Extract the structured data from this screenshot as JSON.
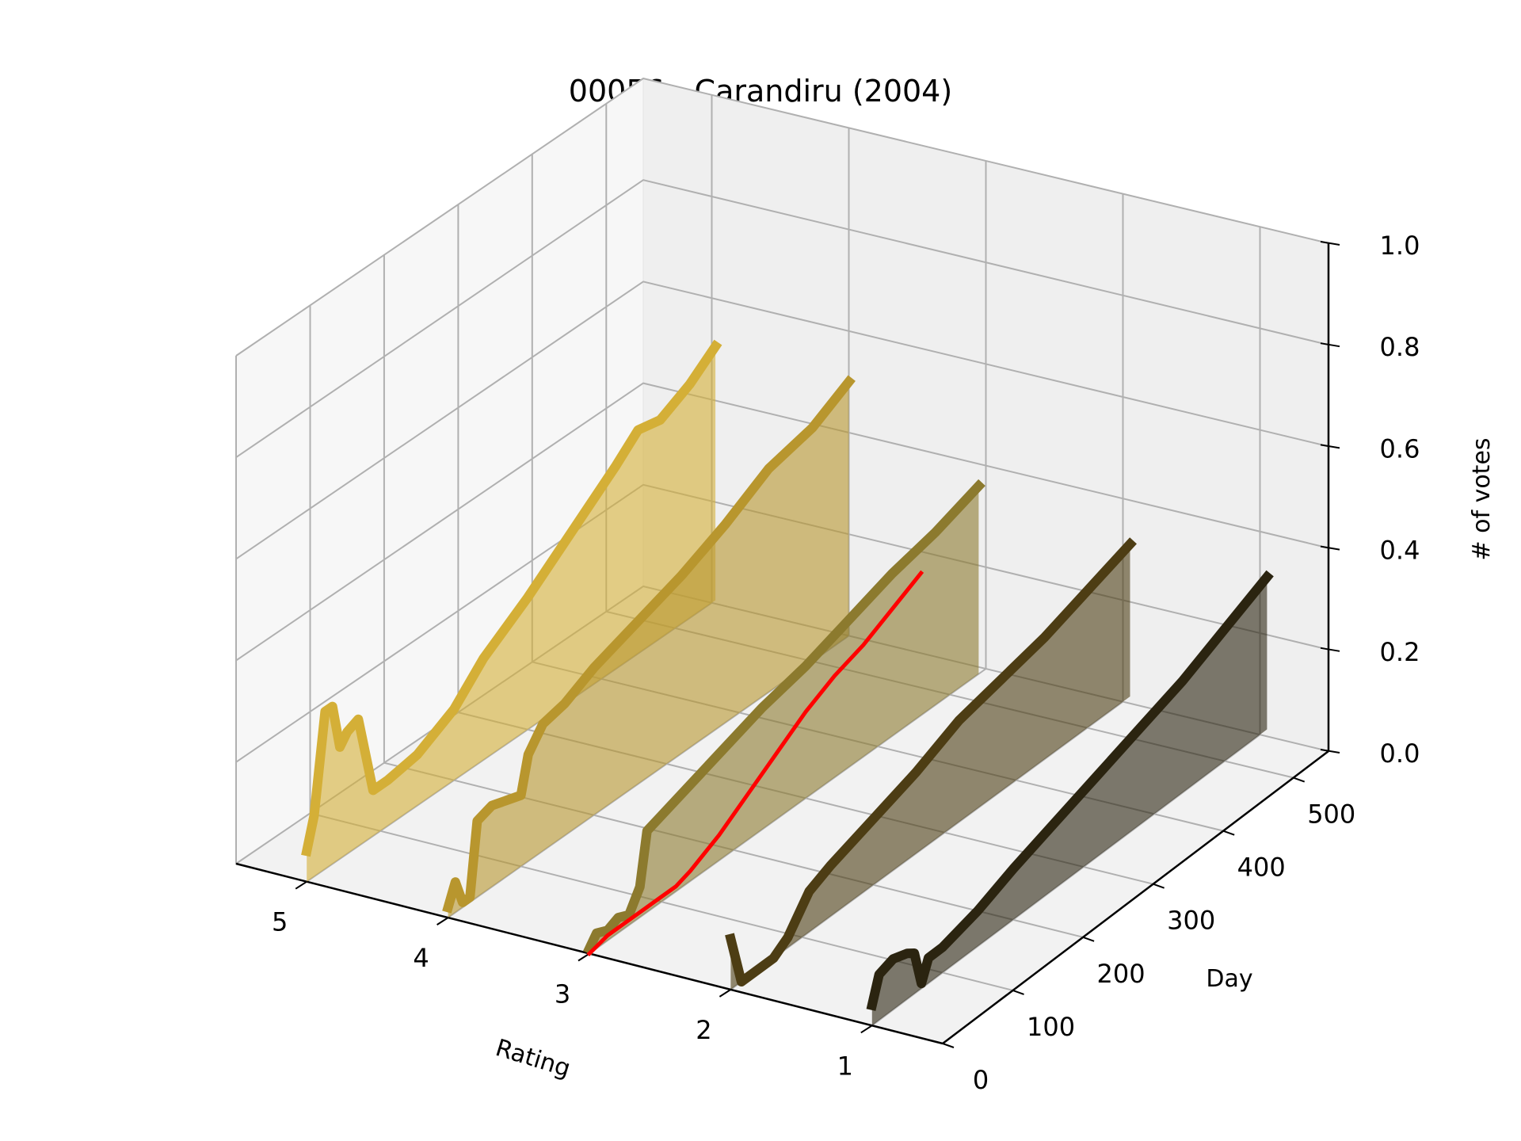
{
  "chart_data": {
    "type": "line",
    "projection": "3d",
    "title": "00056 - Carandiru (2004)",
    "xlabel": "Rating",
    "ylabel": "Day",
    "zlabel": "# of votes",
    "x_ticks": [
      "5",
      "4",
      "3",
      "2",
      "1"
    ],
    "y_ticks": [
      "0",
      "100",
      "200",
      "300",
      "400",
      "500"
    ],
    "z_ticks": [
      "0.0",
      "0.2",
      "0.4",
      "0.6",
      "0.8",
      "1.0"
    ],
    "xlim": [
      0.5,
      5.5
    ],
    "ylim": [
      0,
      550
    ],
    "zlim": [
      0,
      1
    ],
    "grid": true,
    "filled_under_lines": true,
    "series": [
      {
        "rating": 5,
        "color": "#d4af37",
        "points": [
          [
            0,
            0.06
          ],
          [
            10,
            0.12
          ],
          [
            25,
            0.31
          ],
          [
            35,
            0.31
          ],
          [
            45,
            0.22
          ],
          [
            55,
            0.24
          ],
          [
            70,
            0.25
          ],
          [
            90,
            0.09
          ],
          [
            110,
            0.09
          ],
          [
            150,
            0.1
          ],
          [
            200,
            0.14
          ],
          [
            240,
            0.2
          ],
          [
            300,
            0.26
          ],
          [
            360,
            0.33
          ],
          [
            420,
            0.4
          ],
          [
            450,
            0.44
          ],
          [
            480,
            0.43
          ],
          [
            520,
            0.46
          ],
          [
            555,
            0.5
          ]
        ]
      },
      {
        "rating": 4,
        "color": "#b8962e",
        "points": [
          [
            0,
            0.02
          ],
          [
            10,
            0.06
          ],
          [
            20,
            0.01
          ],
          [
            30,
            0.01
          ],
          [
            40,
            0.15
          ],
          [
            60,
            0.16
          ],
          [
            80,
            0.15
          ],
          [
            100,
            0.14
          ],
          [
            110,
            0.21
          ],
          [
            130,
            0.25
          ],
          [
            160,
            0.26
          ],
          [
            200,
            0.29
          ],
          [
            260,
            0.32
          ],
          [
            320,
            0.35
          ],
          [
            380,
            0.39
          ],
          [
            440,
            0.44
          ],
          [
            500,
            0.46
          ],
          [
            550,
            0.5
          ]
        ]
      },
      {
        "rating": 3,
        "color": "#8c7a2e",
        "points": [
          [
            0,
            0.01
          ],
          [
            10,
            0.03
          ],
          [
            25,
            0.02
          ],
          [
            40,
            0.03
          ],
          [
            55,
            0.02
          ],
          [
            70,
            0.06
          ],
          [
            80,
            0.16
          ],
          [
            100,
            0.17
          ],
          [
            160,
            0.2
          ],
          [
            240,
            0.24
          ],
          [
            300,
            0.26
          ],
          [
            360,
            0.29
          ],
          [
            420,
            0.32
          ],
          [
            480,
            0.34
          ],
          [
            540,
            0.37
          ]
        ]
      },
      {
        "rating": 3,
        "color": "#ff0000",
        "points": [
          [
            0,
            0.0
          ],
          [
            25,
            0.01
          ],
          [
            50,
            0.01
          ],
          [
            80,
            0.01
          ],
          [
            100,
            0.01
          ],
          [
            120,
            0.01
          ],
          [
            140,
            0.02
          ],
          [
            180,
            0.05
          ],
          [
            220,
            0.09
          ],
          [
            260,
            0.13
          ],
          [
            300,
            0.17
          ],
          [
            340,
            0.2
          ],
          [
            380,
            0.22
          ],
          [
            420,
            0.25
          ],
          [
            460,
            0.28
          ]
        ]
      },
      {
        "rating": 2,
        "color": "#4d3d14",
        "points": [
          [
            0,
            0.1
          ],
          [
            15,
            0.0
          ],
          [
            60,
            0.0
          ],
          [
            80,
            0.02
          ],
          [
            110,
            0.08
          ],
          [
            140,
            0.1
          ],
          [
            200,
            0.13
          ],
          [
            260,
            0.16
          ],
          [
            320,
            0.2
          ],
          [
            380,
            0.22
          ],
          [
            440,
            0.24
          ],
          [
            500,
            0.27
          ],
          [
            560,
            0.3
          ]
        ]
      },
      {
        "rating": 1,
        "color": "#2b2410",
        "points": [
          [
            0,
            0.04
          ],
          [
            10,
            0.09
          ],
          [
            30,
            0.1
          ],
          [
            50,
            0.09
          ],
          [
            60,
            0.08
          ],
          [
            70,
            0.01
          ],
          [
            80,
            0.05
          ],
          [
            100,
            0.05
          ],
          [
            150,
            0.07
          ],
          [
            200,
            0.1
          ],
          [
            260,
            0.13
          ],
          [
            320,
            0.16
          ],
          [
            380,
            0.19
          ],
          [
            440,
            0.22
          ],
          [
            500,
            0.26
          ],
          [
            560,
            0.3
          ]
        ]
      }
    ]
  }
}
